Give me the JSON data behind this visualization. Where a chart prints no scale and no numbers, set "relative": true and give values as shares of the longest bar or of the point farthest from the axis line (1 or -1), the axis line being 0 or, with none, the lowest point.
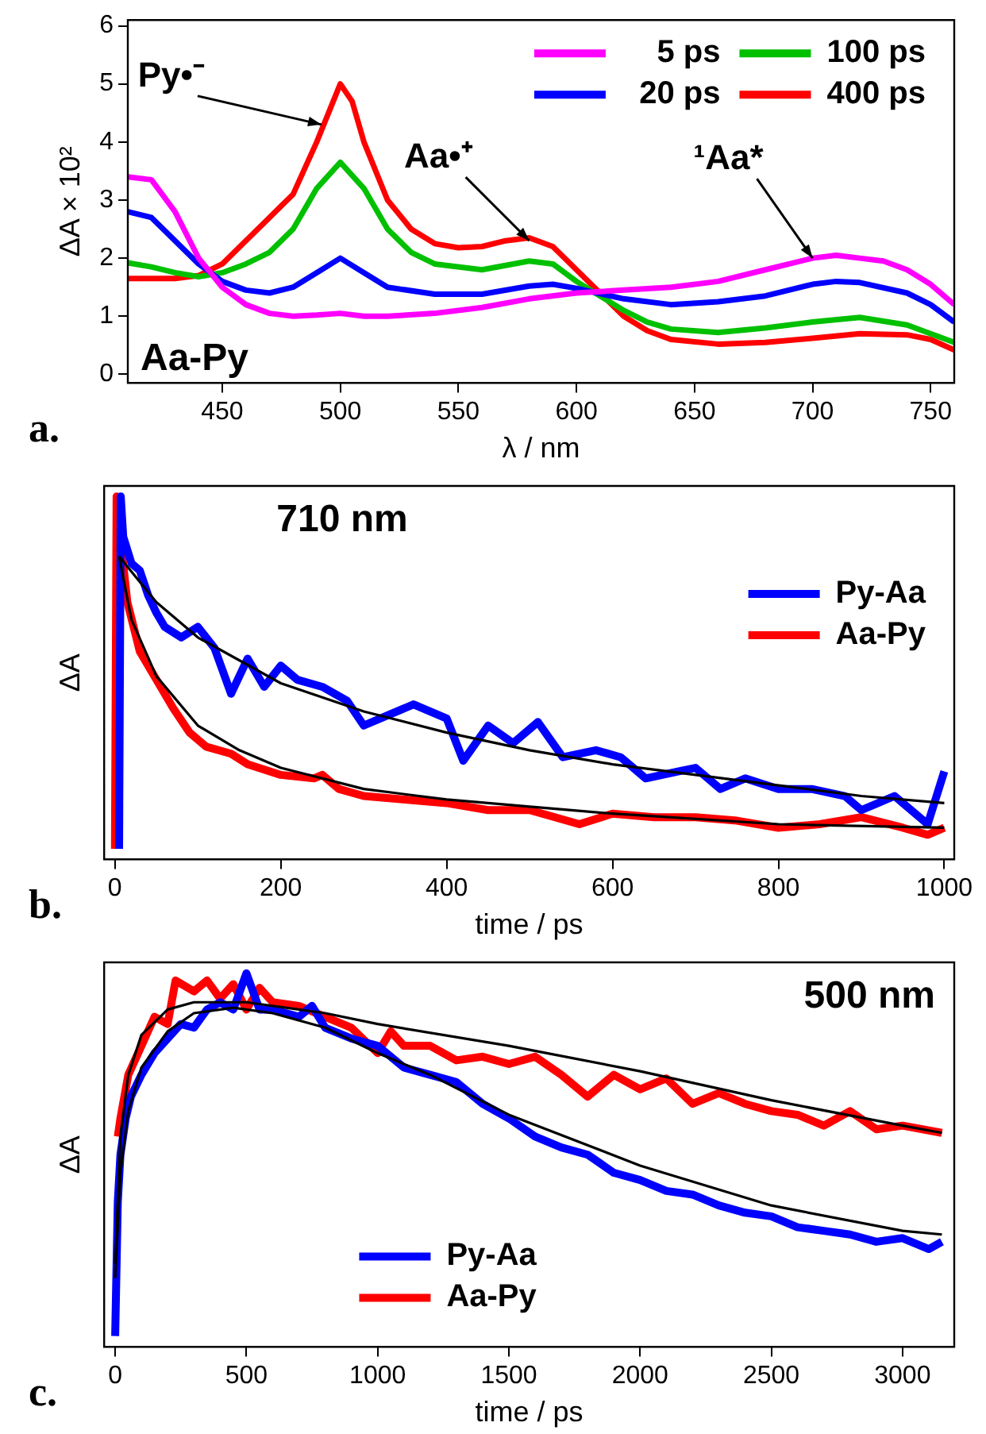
{
  "chart_data": [
    {
      "type": "line",
      "ylabel": "ΔA × 10²",
      "xlabel": "λ / nm",
      "xlim": [
        410,
        760
      ],
      "xticks": [
        450,
        500,
        550,
        600,
        650,
        700,
        750
      ],
      "ylim": [
        -0.15,
        6.1
      ],
      "yticks": [
        0,
        1,
        2,
        3,
        4,
        5,
        6
      ],
      "grid": false,
      "legend": "top right",
      "marker": "none",
      "line_style": "solid",
      "annotations": [
        "Aa-Py",
        "a.",
        {
          "text": "Py•⁻",
          "x": 492,
          "y": 4.3
        },
        {
          "text": "Aa•⁺",
          "x": 580,
          "y": 2.3
        },
        {
          "text": "¹Aa*",
          "x": 700,
          "y": 2.0
        }
      ],
      "series": [
        {
          "name": "5 ps",
          "color": "#ff00ff",
          "x": [
            410,
            420,
            430,
            440,
            450,
            460,
            470,
            480,
            490,
            500,
            510,
            520,
            540,
            560,
            580,
            600,
            620,
            640,
            660,
            680,
            700,
            710,
            720,
            730,
            740,
            750,
            760
          ],
          "values": [
            3.4,
            3.35,
            2.8,
            2.0,
            1.5,
            1.2,
            1.05,
            1.0,
            1.02,
            1.05,
            1.0,
            1.0,
            1.05,
            1.15,
            1.3,
            1.4,
            1.45,
            1.5,
            1.6,
            1.8,
            2.0,
            2.05,
            2.0,
            1.95,
            1.8,
            1.55,
            1.2
          ]
        },
        {
          "name": "20 ps",
          "color": "#0000ff",
          "x": [
            410,
            420,
            430,
            440,
            450,
            460,
            470,
            480,
            490,
            500,
            510,
            520,
            540,
            560,
            580,
            590,
            600,
            620,
            640,
            660,
            680,
            700,
            710,
            720,
            740,
            750,
            760
          ],
          "values": [
            2.8,
            2.7,
            2.3,
            1.9,
            1.6,
            1.45,
            1.4,
            1.5,
            1.75,
            2.0,
            1.75,
            1.5,
            1.38,
            1.38,
            1.52,
            1.55,
            1.48,
            1.3,
            1.2,
            1.25,
            1.35,
            1.55,
            1.6,
            1.58,
            1.4,
            1.2,
            0.9
          ]
        },
        {
          "name": "100 ps",
          "color": "#00c000",
          "x": [
            410,
            420,
            430,
            440,
            450,
            460,
            470,
            480,
            490,
            500,
            510,
            520,
            530,
            540,
            560,
            580,
            590,
            600,
            610,
            620,
            630,
            640,
            660,
            680,
            700,
            720,
            740,
            750,
            760
          ],
          "values": [
            1.92,
            1.85,
            1.75,
            1.68,
            1.75,
            1.9,
            2.1,
            2.5,
            3.2,
            3.65,
            3.2,
            2.5,
            2.1,
            1.9,
            1.8,
            1.95,
            1.9,
            1.6,
            1.35,
            1.1,
            0.9,
            0.78,
            0.72,
            0.8,
            0.9,
            0.98,
            0.85,
            0.7,
            0.55
          ]
        },
        {
          "name": "400 ps",
          "color": "#ff0000",
          "x": [
            410,
            420,
            430,
            440,
            450,
            460,
            470,
            480,
            490,
            500,
            505,
            510,
            520,
            530,
            540,
            550,
            560,
            570,
            580,
            590,
            600,
            610,
            620,
            630,
            640,
            660,
            680,
            700,
            720,
            740,
            750,
            760
          ],
          "values": [
            1.65,
            1.65,
            1.65,
            1.7,
            1.9,
            2.3,
            2.7,
            3.1,
            4.0,
            5.0,
            4.7,
            4.0,
            3.0,
            2.5,
            2.25,
            2.18,
            2.2,
            2.3,
            2.35,
            2.2,
            1.8,
            1.4,
            1.0,
            0.75,
            0.6,
            0.52,
            0.55,
            0.62,
            0.7,
            0.68,
            0.6,
            0.42
          ]
        }
      ]
    },
    {
      "type": "line",
      "title": "710 nm",
      "ylabel": "ΔA",
      "xlabel": "time / ps",
      "xlim": [
        -13,
        1012
      ],
      "xticks": [
        0,
        200,
        400,
        600,
        800,
        1000
      ],
      "relative": true,
      "grid": false,
      "legend": "top right",
      "marker": "none",
      "line_style": "solid",
      "annotations": [
        "b."
      ],
      "series": [
        {
          "name": "Py-Aa",
          "color": "#0000ff",
          "x": [
            5,
            7,
            10,
            20,
            30,
            40,
            50,
            60,
            80,
            100,
            120,
            140,
            160,
            180,
            200,
            220,
            250,
            280,
            300,
            330,
            360,
            400,
            420,
            450,
            480,
            510,
            540,
            580,
            610,
            640,
            680,
            700,
            730,
            760,
            800,
            840,
            880,
            900,
            940,
            980,
            1000
          ],
          "values": [
            0,
            1.0,
            0.886,
            0.81,
            0.79,
            0.72,
            0.67,
            0.63,
            0.6,
            0.63,
            0.57,
            0.44,
            0.54,
            0.46,
            0.52,
            0.48,
            0.46,
            0.42,
            0.35,
            0.38,
            0.41,
            0.37,
            0.25,
            0.35,
            0.3,
            0.36,
            0.26,
            0.28,
            0.26,
            0.2,
            0.22,
            0.23,
            0.17,
            0.2,
            0.17,
            0.17,
            0.15,
            0.11,
            0.15,
            0.07,
            0.22
          ]
        },
        {
          "name": "Aa-Py",
          "color": "#ff0000",
          "x": [
            0,
            2,
            8,
            15,
            30,
            50,
            70,
            90,
            110,
            140,
            160,
            200,
            240,
            250,
            270,
            300,
            350,
            400,
            450,
            500,
            560,
            600,
            650,
            700,
            750,
            800,
            850,
            900,
            950,
            980,
            1000
          ],
          "values": [
            0,
            1.0,
            0.85,
            0.7,
            0.56,
            0.48,
            0.4,
            0.33,
            0.29,
            0.27,
            0.24,
            0.21,
            0.2,
            0.21,
            0.17,
            0.15,
            0.14,
            0.13,
            0.11,
            0.11,
            0.07,
            0.1,
            0.09,
            0.09,
            0.08,
            0.06,
            0.07,
            0.09,
            0.06,
            0.04,
            0.06
          ]
        },
        {
          "color": "#000000",
          "x": [
            5,
            50,
            100,
            200,
            300,
            400,
            500,
            600,
            700,
            800,
            900,
            1000
          ],
          "values": [
            0.83,
            0.7,
            0.6,
            0.47,
            0.39,
            0.33,
            0.28,
            0.24,
            0.21,
            0.18,
            0.15,
            0.13
          ]
        },
        {
          "color": "#000000",
          "x": [
            5,
            20,
            50,
            100,
            150,
            200,
            300,
            400,
            500,
            600,
            800,
            1000
          ],
          "values": [
            0.83,
            0.65,
            0.49,
            0.35,
            0.28,
            0.23,
            0.17,
            0.14,
            0.12,
            0.1,
            0.07,
            0.06
          ]
        }
      ]
    },
    {
      "type": "line",
      "title": "500 nm",
      "ylabel": "ΔA",
      "xlabel": "time / ps",
      "xlim": [
        -42,
        3197
      ],
      "xticks": [
        0,
        500,
        1000,
        1500,
        2000,
        2500,
        3000
      ],
      "relative": true,
      "grid": false,
      "legend": "bottom",
      "marker": "none",
      "line_style": "solid",
      "annotations": [
        "c."
      ],
      "series": [
        {
          "name": "Py-Aa",
          "color": "#0000ff",
          "x": [
            0,
            10,
            20,
            40,
            60,
            100,
            150,
            200,
            250,
            300,
            350,
            400,
            450,
            500,
            550,
            600,
            700,
            750,
            800,
            900,
            1000,
            1100,
            1200,
            1300,
            1400,
            1500,
            1600,
            1700,
            1800,
            1900,
            2000,
            2100,
            2200,
            2300,
            2400,
            2500,
            2600,
            2700,
            2800,
            2900,
            3000,
            3100,
            3150
          ],
          "values": [
            0,
            0.37,
            0.5,
            0.6,
            0.66,
            0.72,
            0.78,
            0.82,
            0.86,
            0.85,
            0.9,
            0.92,
            0.9,
            1.0,
            0.9,
            0.9,
            0.88,
            0.91,
            0.85,
            0.82,
            0.8,
            0.74,
            0.72,
            0.7,
            0.64,
            0.6,
            0.55,
            0.52,
            0.5,
            0.45,
            0.43,
            0.4,
            0.39,
            0.36,
            0.34,
            0.33,
            0.3,
            0.29,
            0.28,
            0.26,
            0.27,
            0.24,
            0.26
          ]
        },
        {
          "name": "Aa-Py",
          "color": "#ff0000",
          "x": [
            10,
            20,
            50,
            100,
            150,
            200,
            230,
            300,
            350,
            400,
            450,
            500,
            550,
            600,
            700,
            800,
            900,
            1000,
            1050,
            1100,
            1200,
            1300,
            1400,
            1500,
            1600,
            1700,
            1800,
            1900,
            2000,
            2100,
            2200,
            2300,
            2400,
            2500,
            2600,
            2700,
            2800,
            2900,
            3000,
            3150
          ],
          "values": [
            0.55,
            0.6,
            0.72,
            0.8,
            0.88,
            0.86,
            0.98,
            0.95,
            0.98,
            0.93,
            0.97,
            0.9,
            0.96,
            0.92,
            0.91,
            0.88,
            0.85,
            0.78,
            0.84,
            0.8,
            0.8,
            0.76,
            0.77,
            0.75,
            0.77,
            0.72,
            0.66,
            0.72,
            0.68,
            0.71,
            0.64,
            0.67,
            0.64,
            0.62,
            0.61,
            0.58,
            0.62,
            0.57,
            0.58,
            0.56
          ]
        },
        {
          "color": "#000000",
          "x": [
            0,
            20,
            50,
            100,
            200,
            300,
            450,
            600,
            800,
            1000,
            1200,
            1500,
            2000,
            2500,
            3000,
            3150
          ],
          "values": [
            0.16,
            0.45,
            0.62,
            0.74,
            0.84,
            0.89,
            0.905,
            0.89,
            0.85,
            0.78,
            0.72,
            0.61,
            0.47,
            0.36,
            0.29,
            0.28
          ]
        },
        {
          "color": "#000000",
          "x": [
            0,
            20,
            50,
            100,
            200,
            300,
            500,
            800,
            1000,
            1500,
            2000,
            2500,
            3000,
            3150
          ],
          "values": [
            0.2,
            0.55,
            0.72,
            0.83,
            0.9,
            0.92,
            0.92,
            0.89,
            0.86,
            0.8,
            0.73,
            0.65,
            0.58,
            0.56
          ]
        }
      ]
    }
  ]
}
